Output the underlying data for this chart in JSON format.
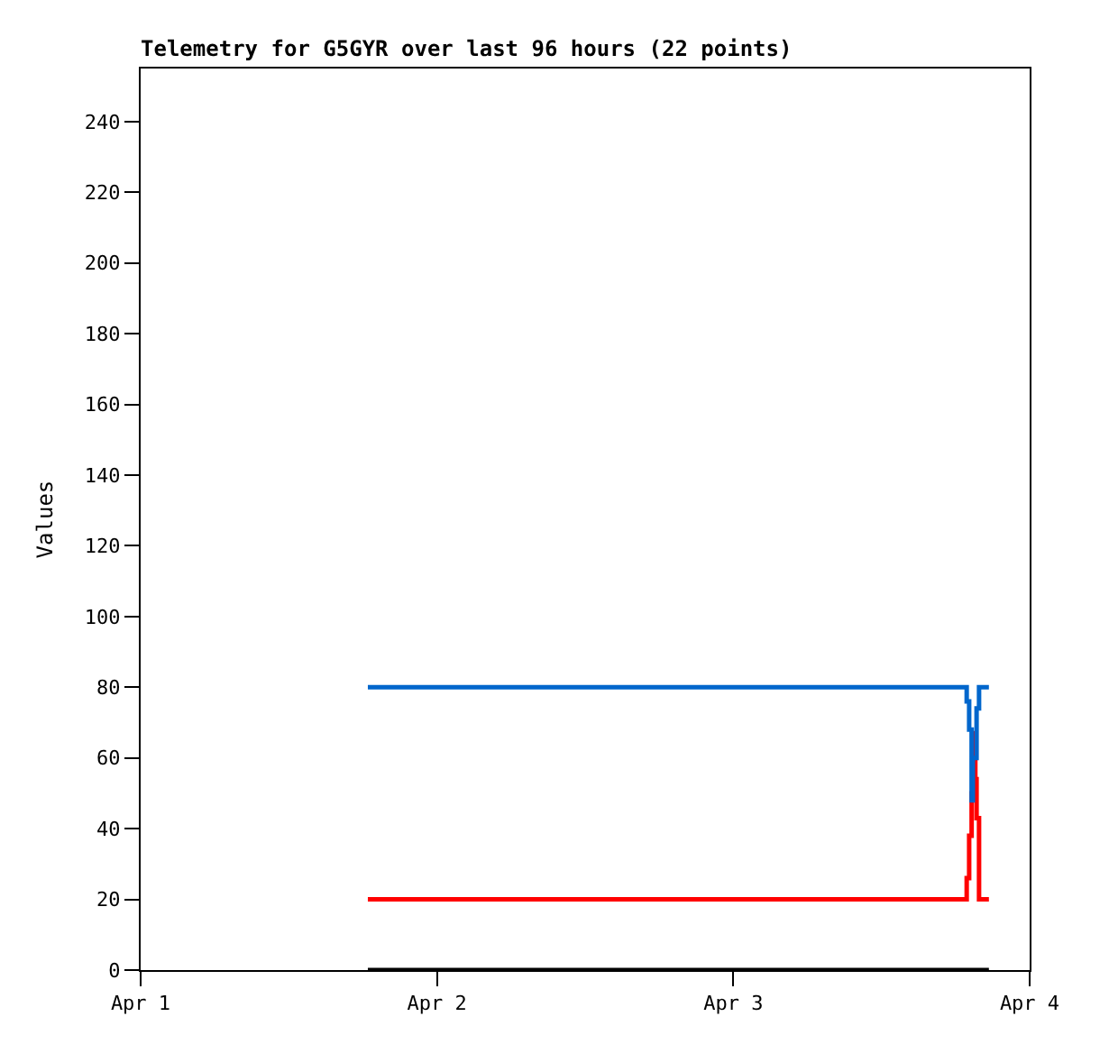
{
  "chart_data": {
    "type": "step",
    "title": "Telemetry for G5GYR over last 96 hours (22 points)",
    "ylabel": "Values",
    "x": [
      "--04-01T18:24",
      "--04-03T18:54",
      "--04-03T19:06",
      "--04-03T19:18",
      "--04-03T19:24",
      "--04-03T19:36",
      "--04-03T19:42",
      "--04-03T19:54",
      "--04-03T20:42"
    ],
    "series": [
      {
        "color": "#0066cc",
        "values": [
          80,
          76,
          68,
          48,
          60,
          60,
          74,
          80,
          80
        ]
      },
      {
        "color": "#ff0000",
        "values": [
          20,
          26,
          38,
          50,
          67,
          54,
          43,
          20,
          20
        ]
      },
      {
        "color": "#000000",
        "values": [
          0,
          0,
          0,
          0,
          0,
          0,
          0,
          0,
          0
        ]
      }
    ],
    "xlim": [
      "--04-01",
      "--04-04"
    ],
    "xticks": [
      {
        "value": "--04-01",
        "label": "Apr 1"
      },
      {
        "value": "--04-02",
        "label": "Apr 2"
      },
      {
        "value": "--04-03",
        "label": "Apr 3"
      },
      {
        "value": "--04-04",
        "label": "Apr 4"
      }
    ],
    "ylim": [
      0,
      255
    ],
    "yticks": [
      0,
      20,
      40,
      60,
      80,
      100,
      120,
      140,
      160,
      180,
      200,
      220,
      240
    ],
    "marker": "none",
    "line_style": "solid"
  }
}
